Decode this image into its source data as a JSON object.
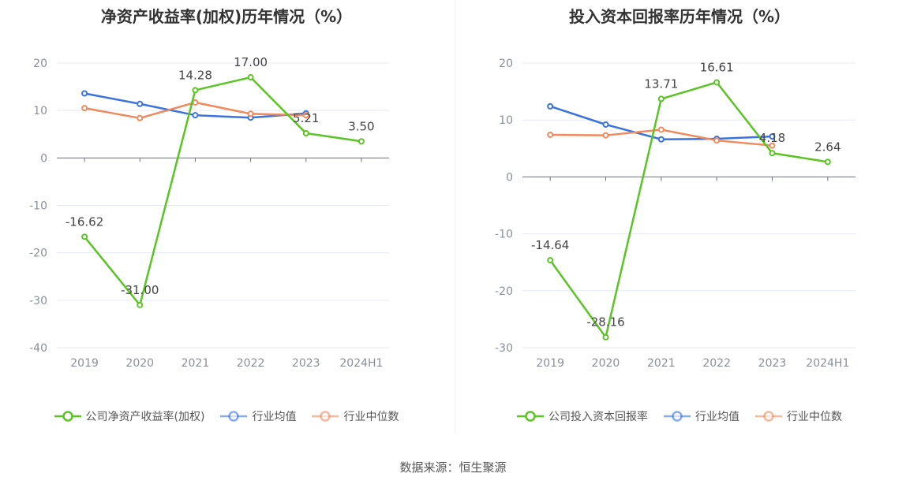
{
  "chart_data": [
    {
      "type": "line",
      "title": "净资产收益率(加权)历年情况（%）",
      "categories": [
        "2019",
        "2020",
        "2021",
        "2022",
        "2023",
        "2024H1"
      ],
      "ylim": [
        -40,
        20
      ],
      "yticks": [
        20,
        10,
        0,
        -10,
        -20,
        -30,
        -40
      ],
      "grid": true,
      "legend_position": "bottom",
      "series": [
        {
          "name": "公司净资产收益率(加权)",
          "color": "#5bc425",
          "labeled": true,
          "values": [
            -16.62,
            -31.0,
            14.28,
            17.0,
            5.21,
            3.5
          ],
          "labels": [
            "-16.62",
            "-31.00",
            "14.28",
            "17.00",
            "5.21",
            "3.50"
          ]
        },
        {
          "name": "行业均值",
          "color": "#3b73de",
          "labeled": false,
          "values": [
            13.6,
            11.4,
            9.0,
            8.5,
            9.4,
            null
          ]
        },
        {
          "name": "行业中位数",
          "color": "#f08a5d",
          "labeled": false,
          "values": [
            10.5,
            8.4,
            11.7,
            9.3,
            9.0,
            null
          ]
        }
      ]
    },
    {
      "type": "line",
      "title": "投入资本回报率历年情况（%）",
      "categories": [
        "2019",
        "2020",
        "2021",
        "2022",
        "2023",
        "2024H1"
      ],
      "ylim": [
        -30,
        20
      ],
      "yticks": [
        20,
        10,
        0,
        -10,
        -20,
        -30
      ],
      "grid": true,
      "legend_position": "bottom",
      "series": [
        {
          "name": "公司投入资本回报率",
          "color": "#5bc425",
          "labeled": true,
          "values": [
            -14.64,
            -28.16,
            13.71,
            16.61,
            4.18,
            2.64
          ],
          "labels": [
            "-14.64",
            "-28.16",
            "13.71",
            "16.61",
            "4.18",
            "2.64"
          ]
        },
        {
          "name": "行业均值",
          "color": "#3b73de",
          "labeled": false,
          "values": [
            12.4,
            9.2,
            6.6,
            6.7,
            7.1,
            null
          ]
        },
        {
          "name": "行业中位数",
          "color": "#f08a5d",
          "labeled": false,
          "values": [
            7.4,
            7.3,
            8.3,
            6.4,
            5.5,
            null
          ]
        }
      ]
    }
  ],
  "source": "数据来源：恒生聚源"
}
